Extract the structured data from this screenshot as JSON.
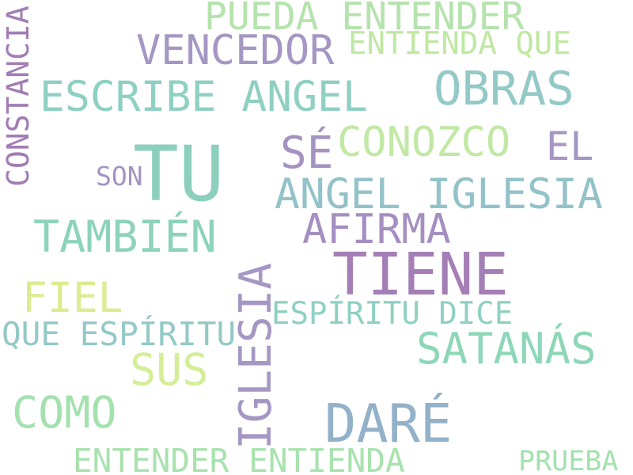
{
  "words": {
    "pueda_entender": {
      "text": "PUEDA ENTENDER",
      "color": "#b5e3ad"
    },
    "vencedor": {
      "text": "VENCEDOR",
      "color": "#a597c3"
    },
    "entienda_que": {
      "text": "ENTIENDA QUE",
      "color": "#bfe8a2"
    },
    "escribe_angel": {
      "text": "ESCRIBE ANGEL",
      "color": "#8fd0c2"
    },
    "obras": {
      "text": "OBRAS",
      "color": "#93c9c6"
    },
    "se": {
      "text": "SÉ",
      "color": "#a493c0"
    },
    "conozco": {
      "text": "CONOZCO",
      "color": "#c1e8a4"
    },
    "el": {
      "text": "EL",
      "color": "#a597c3"
    },
    "tu": {
      "text": "TU",
      "color": "#8ccfbc"
    },
    "son": {
      "text": "SON",
      "color": "#a493c0"
    },
    "angel_iglesia": {
      "text": "ANGEL IGLESIA",
      "color": "#93c2c8"
    },
    "constancia": {
      "text": "CONSTANCIA",
      "color": "#a27db5"
    },
    "tambien": {
      "text": "TAMBIÉN",
      "color": "#8dd3bb"
    },
    "afirma": {
      "text": "AFIRMA",
      "color": "#a58fc1"
    },
    "tiene": {
      "text": "TIENE",
      "color": "#a47fb5"
    },
    "fiel": {
      "text": "FIEL",
      "color": "#dcec90"
    },
    "iglesia": {
      "text": "IGLESIA",
      "color": "#a597c3"
    },
    "espiritu_dice": {
      "text": "ESPÍRITU DICE",
      "color": "#8fd0c2"
    },
    "que_espiritu": {
      "text": "QUE ESPÍRITU",
      "color": "#93c9c6"
    },
    "satanas": {
      "text": "SATANÁS",
      "color": "#8ed6b8"
    },
    "sus": {
      "text": "SUS",
      "color": "#d4ee98"
    },
    "como": {
      "text": "COMO",
      "color": "#a3e1ae"
    },
    "dare": {
      "text": "DARÉ",
      "color": "#93b1c8"
    },
    "entender_entienda": {
      "text": "ENTENDER ENTIENDA",
      "color": "#a8e2ad"
    },
    "prueba": {
      "text": "PRUEBA",
      "color": "#a3e1ae"
    }
  }
}
